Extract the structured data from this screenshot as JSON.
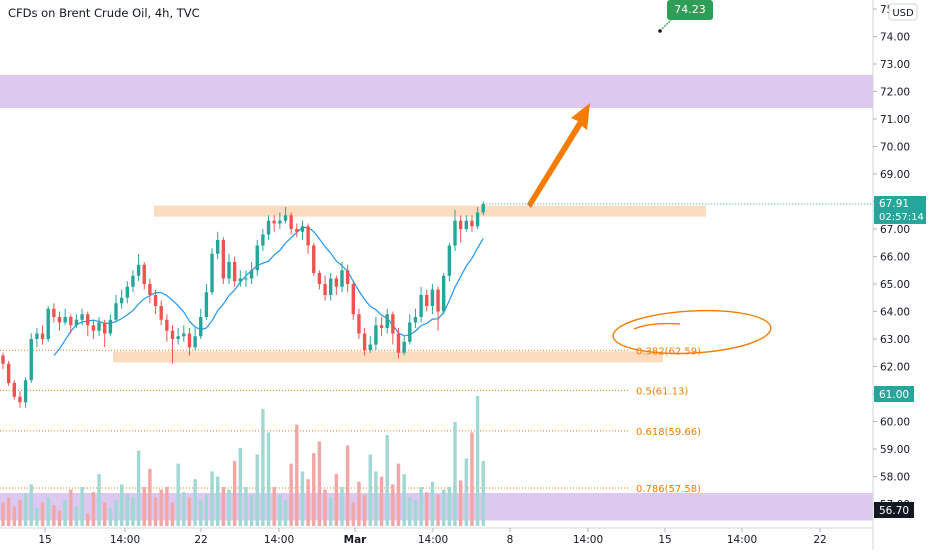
{
  "chart_data": {
    "type": "candlestick",
    "title": "CFDs on Brent Crude Oil, 4h, TVC",
    "currency": "USD",
    "ylim": [
      56.5,
      75.2
    ],
    "y_ticks": [
      "57.00",
      "58.00",
      "59.00",
      "60.00",
      "61.00",
      "62.00",
      "63.00",
      "64.00",
      "65.00",
      "66.00",
      "67.00",
      "68.00",
      "69.00",
      "70.00",
      "71.00",
      "72.00",
      "73.00",
      "74.00",
      "75.00"
    ],
    "x_ticks": [
      "15",
      "14:00",
      "22",
      "14:00",
      "Mar",
      "14:00",
      "8",
      "14:00",
      "15",
      "14:00",
      "22"
    ],
    "candles": [
      [
        62.4,
        62.1,
        62.5,
        61.9
      ],
      [
        62.1,
        61.4,
        62.2,
        61.3
      ],
      [
        61.4,
        60.9,
        61.5,
        60.8
      ],
      [
        60.9,
        60.7,
        61.1,
        60.5
      ],
      [
        60.7,
        61.5,
        61.6,
        60.5
      ],
      [
        61.5,
        63.0,
        63.2,
        61.4
      ],
      [
        63.0,
        63.2,
        63.4,
        62.7
      ],
      [
        63.2,
        63.0,
        63.5,
        62.8
      ],
      [
        63.0,
        64.1,
        64.2,
        62.9
      ],
      [
        64.1,
        63.8,
        64.3,
        63.6
      ],
      [
        63.8,
        63.6,
        64.0,
        63.3
      ],
      [
        63.6,
        63.8,
        64.1,
        63.5
      ],
      [
        63.8,
        63.5,
        63.9,
        63.2
      ],
      [
        63.5,
        63.7,
        63.9,
        63.4
      ],
      [
        63.7,
        63.9,
        64.1,
        63.5
      ],
      [
        63.9,
        63.5,
        64.0,
        63.1
      ],
      [
        63.5,
        63.3,
        63.7,
        63.0
      ],
      [
        63.3,
        63.6,
        63.8,
        63.1
      ],
      [
        63.6,
        63.2,
        63.7,
        62.7
      ],
      [
        63.2,
        63.7,
        63.9,
        63.1
      ],
      [
        63.7,
        64.3,
        64.6,
        63.6
      ],
      [
        64.3,
        64.5,
        64.8,
        64.1
      ],
      [
        64.5,
        64.9,
        65.1,
        64.3
      ],
      [
        64.9,
        65.3,
        65.5,
        64.7
      ],
      [
        65.3,
        65.7,
        66.1,
        65.1
      ],
      [
        65.7,
        65.0,
        65.8,
        64.8
      ],
      [
        65.0,
        64.6,
        65.2,
        64.3
      ],
      [
        64.6,
        64.2,
        64.8,
        63.9
      ],
      [
        64.2,
        63.7,
        64.4,
        63.5
      ],
      [
        63.7,
        63.3,
        63.9,
        62.9
      ],
      [
        63.3,
        63.0,
        63.5,
        62.1
      ],
      [
        63.0,
        63.1,
        63.4,
        62.8
      ],
      [
        63.1,
        63.2,
        63.5,
        62.9
      ],
      [
        63.2,
        62.7,
        63.4,
        62.4
      ],
      [
        62.7,
        63.1,
        63.4,
        62.6
      ],
      [
        63.1,
        63.8,
        64.1,
        63.0
      ],
      [
        63.8,
        64.7,
        65.0,
        63.7
      ],
      [
        64.7,
        66.1,
        66.3,
        64.6
      ],
      [
        66.1,
        66.6,
        66.9,
        65.9
      ],
      [
        66.6,
        65.2,
        66.7,
        65.0
      ],
      [
        65.2,
        65.8,
        66.1,
        65.0
      ],
      [
        65.8,
        65.1,
        66.0,
        64.9
      ],
      [
        65.1,
        65.2,
        65.5,
        64.9
      ],
      [
        65.2,
        65.2,
        65.5,
        64.9
      ],
      [
        65.2,
        65.5,
        65.8,
        65.0
      ],
      [
        65.5,
        66.4,
        66.6,
        65.3
      ],
      [
        66.4,
        66.8,
        67.0,
        66.2
      ],
      [
        66.8,
        67.3,
        67.5,
        66.6
      ],
      [
        67.3,
        67.2,
        67.5,
        66.9
      ],
      [
        67.2,
        67.3,
        67.6,
        67.0
      ],
      [
        67.3,
        67.5,
        67.8,
        67.2
      ],
      [
        67.5,
        67.0,
        67.6,
        66.8
      ],
      [
        67.0,
        66.9,
        67.2,
        66.7
      ],
      [
        66.9,
        67.1,
        67.3,
        66.6
      ],
      [
        67.1,
        66.4,
        67.2,
        66.1
      ],
      [
        66.4,
        65.4,
        66.5,
        65.3
      ],
      [
        65.4,
        65.0,
        65.5,
        64.8
      ],
      [
        65.0,
        64.6,
        65.3,
        64.4
      ],
      [
        64.6,
        65.2,
        65.4,
        64.4
      ],
      [
        65.2,
        64.9,
        65.3,
        64.6
      ],
      [
        64.9,
        65.5,
        65.8,
        64.7
      ],
      [
        65.5,
        65.0,
        65.7,
        64.7
      ],
      [
        65.0,
        63.9,
        65.1,
        63.7
      ],
      [
        63.9,
        63.2,
        64.1,
        63.0
      ],
      [
        63.2,
        62.6,
        63.4,
        62.4
      ],
      [
        62.6,
        62.8,
        63.1,
        62.5
      ],
      [
        62.8,
        63.5,
        63.8,
        62.6
      ],
      [
        63.5,
        63.4,
        63.8,
        63.1
      ],
      [
        63.4,
        63.9,
        64.1,
        63.2
      ],
      [
        63.9,
        63.2,
        64.0,
        62.8
      ],
      [
        63.2,
        62.5,
        63.4,
        62.3
      ],
      [
        62.5,
        62.9,
        63.1,
        62.4
      ],
      [
        62.9,
        63.6,
        63.9,
        62.8
      ],
      [
        63.6,
        63.8,
        64.1,
        63.4
      ],
      [
        63.8,
        64.6,
        64.9,
        63.6
      ],
      [
        64.6,
        64.2,
        64.8,
        64.0
      ],
      [
        64.2,
        64.8,
        65.0,
        63.9
      ],
      [
        64.8,
        64.0,
        64.9,
        63.3
      ],
      [
        64.0,
        65.3,
        65.4,
        63.9
      ],
      [
        65.3,
        66.4,
        66.5,
        65.1
      ],
      [
        66.4,
        67.3,
        67.7,
        66.2
      ],
      [
        67.3,
        67.0,
        67.5,
        66.5
      ],
      [
        67.0,
        67.3,
        67.5,
        66.9
      ],
      [
        67.3,
        67.1,
        67.5,
        66.9
      ],
      [
        67.1,
        67.6,
        67.8,
        67.0
      ],
      [
        67.6,
        67.91,
        68.0,
        67.5
      ]
    ],
    "volume": [
      0.18,
      0.22,
      0.15,
      0.2,
      0.25,
      0.32,
      0.14,
      0.18,
      0.22,
      0.16,
      0.12,
      0.2,
      0.28,
      0.15,
      0.3,
      0.1,
      0.26,
      0.4,
      0.18,
      0.14,
      0.2,
      0.32,
      0.24,
      0.22,
      0.58,
      0.3,
      0.44,
      0.22,
      0.28,
      0.3,
      0.18,
      0.48,
      0.26,
      0.22,
      0.36,
      0.2,
      0.24,
      0.42,
      0.38,
      0.3,
      0.28,
      0.5,
      0.6,
      0.3,
      0.24,
      0.55,
      0.9,
      0.72,
      0.3,
      0.24,
      0.2,
      0.48,
      0.78,
      0.42,
      0.36,
      0.56,
      0.65,
      0.28,
      0.22,
      0.4,
      0.3,
      0.62,
      0.18,
      0.34,
      0.24,
      0.55,
      0.42,
      0.38,
      0.7,
      0.32,
      0.48,
      0.4,
      0.22,
      0.2,
      0.3,
      0.26,
      0.34,
      0.24,
      0.28,
      0.3,
      0.8,
      0.35,
      0.52,
      0.72,
      1.0,
      0.5
    ],
    "levels": {
      "current_price": "67.91",
      "countdown": "02:57:14",
      "target_price": "74.23",
      "ma_price": "61.00",
      "left_price": "56.70"
    },
    "fib_labels": [
      {
        "label": "0.382(62.59)",
        "value": 62.59
      },
      {
        "label": "0.5(61.13)",
        "value": 61.13
      },
      {
        "label": "0.618(59.66)",
        "value": 59.66
      },
      {
        "label": "0.786(57.58)",
        "value": 57.58
      }
    ],
    "zones": [
      {
        "from": 71.4,
        "to": 72.6,
        "color": "#dcc8f0"
      },
      {
        "from": 67.45,
        "to": 67.85,
        "color": "#fbdcbe"
      },
      {
        "from": 62.15,
        "to": 62.55,
        "color": "#fbdcbe"
      },
      {
        "from": 56.4,
        "to": 57.4,
        "color": "#dcc8f0"
      }
    ],
    "colors": {
      "up": "#26a69a",
      "down": "#ef5350",
      "vol_up": "#9fd8d4",
      "vol_down": "#f2a6a5",
      "fib": "#f57c00",
      "ma": "#2196f3",
      "arrow": "#f57c00",
      "target": "#2e9e56"
    }
  }
}
